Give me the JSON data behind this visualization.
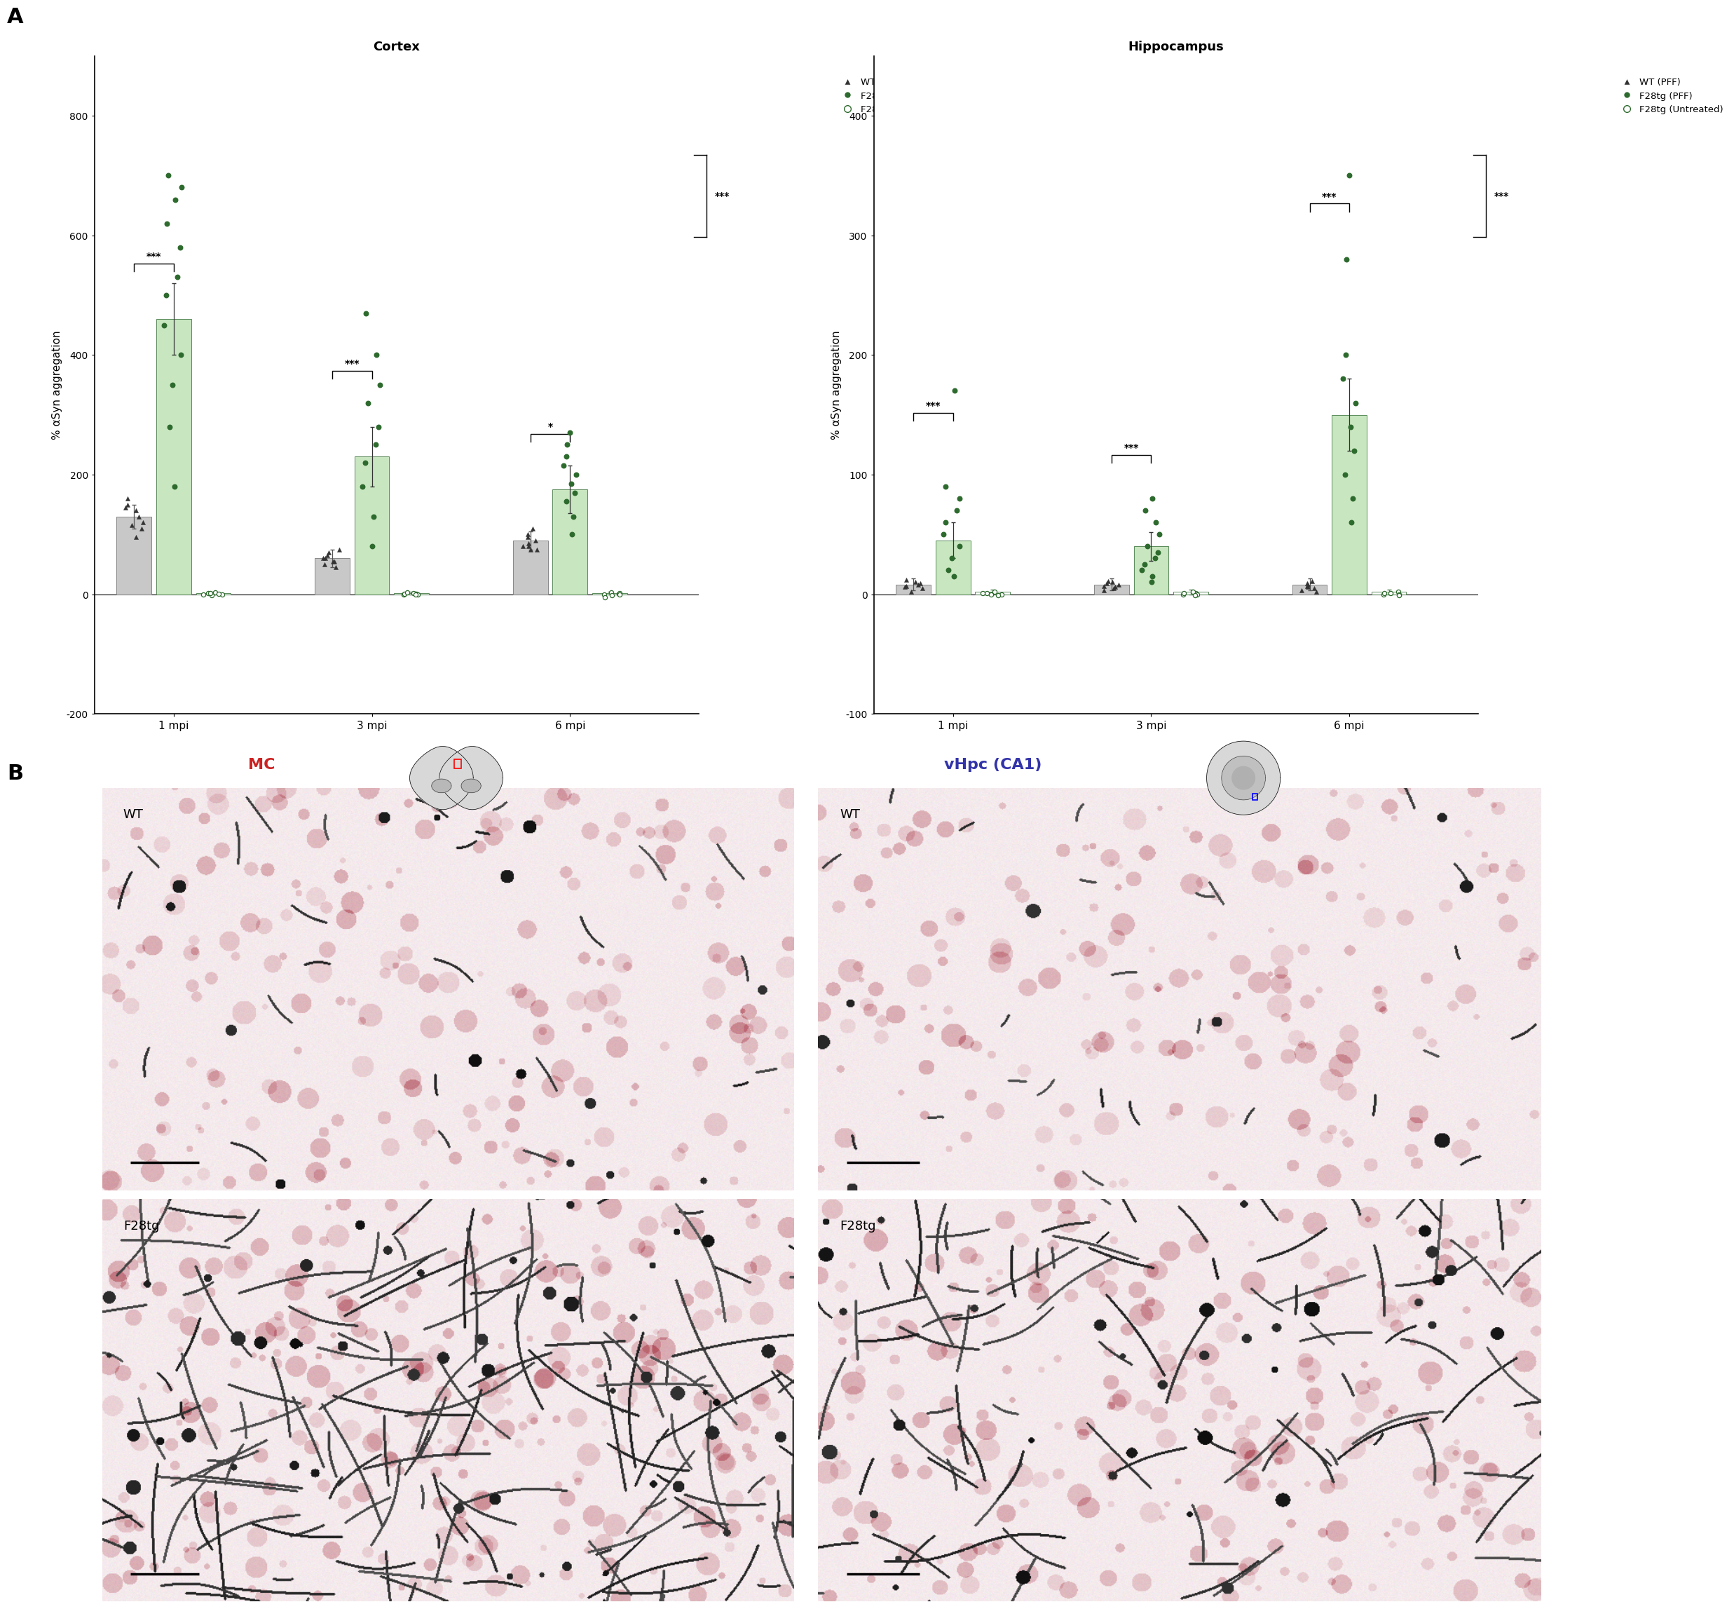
{
  "cortex_title": "Cortex",
  "hippocampus_title": "Hippocampus",
  "ylabel": "% αSyn aggregation",
  "xticklabels": [
    "1 mpi",
    "3 mpi",
    "6 mpi"
  ],
  "cortex_ylim": [
    -200,
    900
  ],
  "cortex_yticks": [
    -200,
    0,
    200,
    400,
    600,
    800
  ],
  "hipp_ylim": [
    -100,
    450
  ],
  "hipp_yticks": [
    -100,
    0,
    100,
    200,
    300,
    400
  ],
  "cortex_wt_means": [
    130,
    60,
    90
  ],
  "cortex_wt_errors": [
    20,
    15,
    15
  ],
  "cortex_f28tg_means": [
    460,
    230,
    175
  ],
  "cortex_f28tg_errors": [
    60,
    50,
    40
  ],
  "cortex_untreated_means": [
    2,
    2,
    2
  ],
  "cortex_untreated_errors": [
    2,
    2,
    2
  ],
  "hipp_wt_means": [
    8,
    8,
    8
  ],
  "hipp_wt_errors": [
    5,
    5,
    5
  ],
  "hipp_f28tg_means": [
    45,
    40,
    150
  ],
  "hipp_f28tg_errors": [
    15,
    12,
    30
  ],
  "hipp_untreated_means": [
    2,
    2,
    2
  ],
  "hipp_untreated_errors": [
    2,
    2,
    2
  ],
  "cortex_wt_dots": [
    [
      115,
      120,
      130,
      140,
      150,
      160,
      145,
      110,
      95
    ],
    [
      50,
      55,
      60,
      65,
      70,
      75,
      45,
      55,
      60
    ],
    [
      75,
      80,
      90,
      95,
      100,
      110,
      85,
      80,
      75
    ]
  ],
  "cortex_f28tg_dots": [
    [
      180,
      280,
      350,
      400,
      450,
      500,
      530,
      580,
      620,
      660,
      680,
      700
    ],
    [
      80,
      130,
      180,
      220,
      250,
      280,
      320,
      350,
      400,
      470
    ],
    [
      100,
      130,
      155,
      170,
      185,
      200,
      215,
      230,
      250,
      270
    ]
  ],
  "cortex_untreated_dots": [
    [
      0,
      2,
      3,
      -2,
      1,
      0,
      2
    ],
    [
      0,
      1,
      2,
      -1,
      0,
      1,
      3
    ],
    [
      0,
      -5,
      1,
      2,
      0,
      3,
      -2
    ]
  ],
  "hipp_wt_dots": [
    [
      2,
      5,
      8,
      10,
      12,
      7,
      6,
      9
    ],
    [
      3,
      5,
      7,
      9,
      11,
      8,
      6,
      10
    ],
    [
      2,
      3,
      5,
      7,
      9,
      11,
      6,
      8
    ]
  ],
  "hipp_f28tg_dots": [
    [
      15,
      20,
      30,
      40,
      50,
      60,
      70,
      80,
      90,
      170
    ],
    [
      10,
      15,
      20,
      25,
      30,
      35,
      40,
      50,
      60,
      70,
      80
    ],
    [
      60,
      80,
      100,
      120,
      140,
      160,
      180,
      200,
      280,
      350
    ]
  ],
  "hipp_untreated_dots": [
    [
      0,
      1,
      2,
      0,
      -1,
      1
    ],
    [
      0,
      1,
      2,
      0,
      -1,
      1
    ],
    [
      0,
      1,
      2,
      0,
      -1,
      1
    ]
  ],
  "wt_bar_color": "#c8c8c8",
  "f28tg_bar_color": "#c8e6c0",
  "untreated_bar_color": "#ffffff",
  "wt_dot_color": "#333333",
  "f28tg_dot_color": "#2d6a2d",
  "untreated_dot_color": "#4a7a4a",
  "untreated_dot_edge": "#2d6a2d",
  "legend_labels": [
    "WT (PFF)",
    "F28tg (PFF)",
    "F28tg (Untreated)"
  ],
  "panel_label_A": "A",
  "panel_label_B": "B",
  "mc_label": "MC",
  "vhpc_label": "vHpc (CA1)",
  "wt_label": "WT",
  "f28tg_label": "F28tg",
  "mc_color": "#cc2222",
  "vhpc_color": "#3333aa"
}
